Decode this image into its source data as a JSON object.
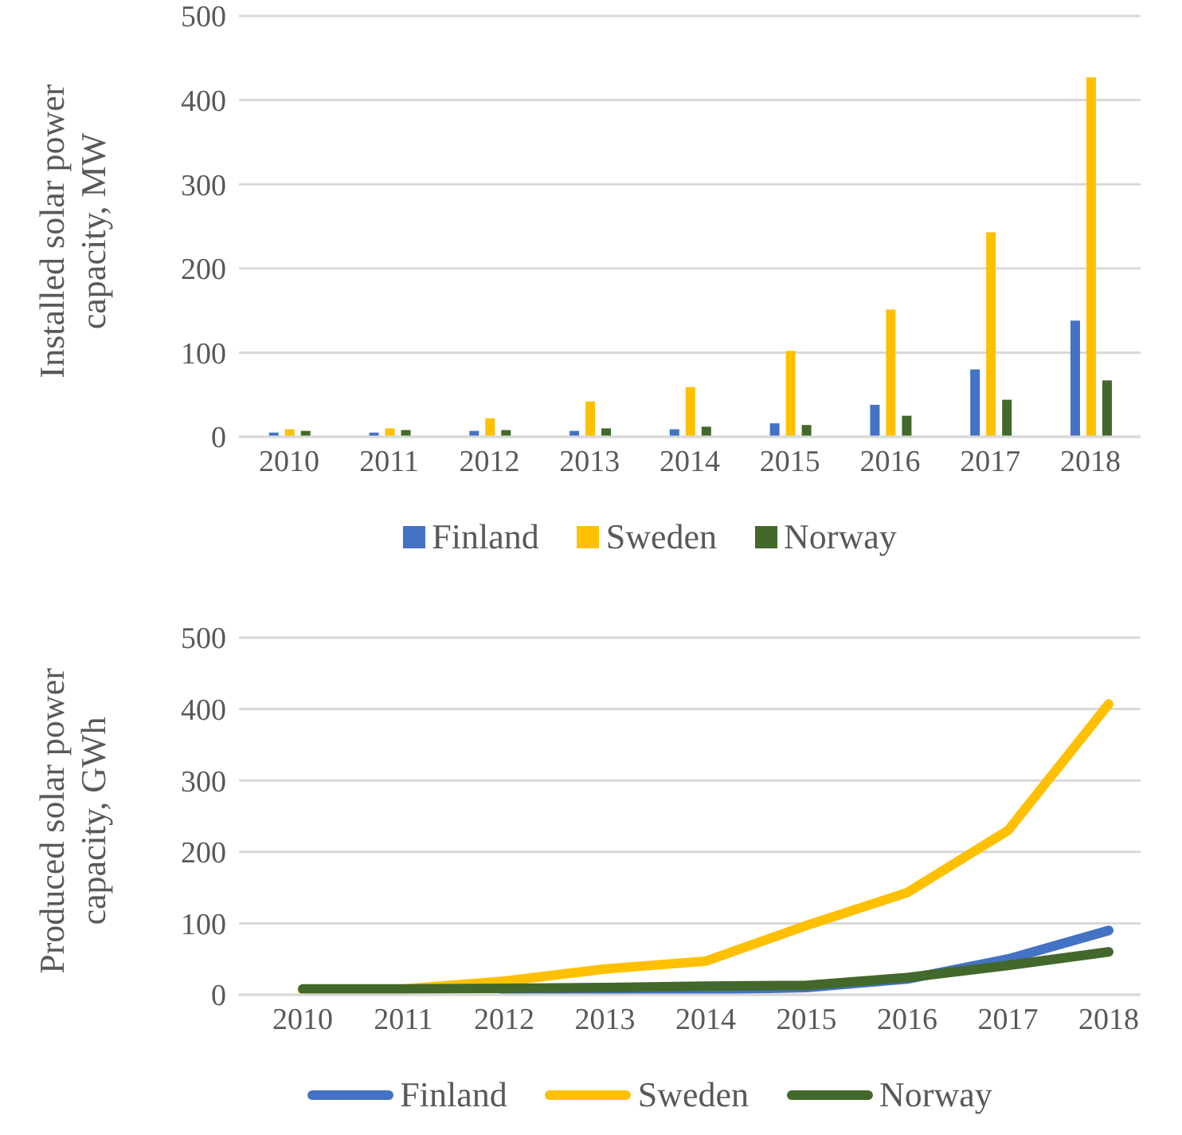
{
  "chart_data": [
    {
      "type": "bar",
      "ylabel": "Installed solar power capacity, MW",
      "categories": [
        "2010",
        "2011",
        "2012",
        "2013",
        "2014",
        "2015",
        "2016",
        "2017",
        "2018"
      ],
      "series": [
        {
          "name": "Finland",
          "color": "#4472c4",
          "values": [
            5,
            5,
            7,
            7,
            9,
            16,
            38,
            80,
            138
          ]
        },
        {
          "name": "Sweden",
          "color": "#ffc000",
          "values": [
            9,
            10,
            22,
            42,
            59,
            102,
            151,
            243,
            427
          ]
        },
        {
          "name": "Norway",
          "color": "#43682b",
          "values": [
            7,
            8,
            8,
            10,
            12,
            14,
            25,
            44,
            67
          ]
        }
      ],
      "ylim": [
        0,
        500
      ],
      "yticks": [
        0,
        100,
        200,
        300,
        400,
        500
      ],
      "grid": "y",
      "legend": "bottom"
    },
    {
      "type": "line",
      "ylabel": "Produced solar power capacity, GWh",
      "categories": [
        "2010",
        "2011",
        "2012",
        "2013",
        "2014",
        "2015",
        "2016",
        "2017",
        "2018"
      ],
      "series": [
        {
          "name": "Finland",
          "color": "#4472c4",
          "values": [
            null,
            null,
            5,
            5,
            7,
            10,
            22,
            50,
            90
          ]
        },
        {
          "name": "Sweden",
          "color": "#ffc000",
          "values": [
            6,
            8,
            19,
            36,
            47,
            97,
            143,
            230,
            407
          ]
        },
        {
          "name": "Norway",
          "color": "#43682b",
          "values": [
            8,
            8,
            9,
            10,
            12,
            13,
            24,
            41,
            60
          ]
        }
      ],
      "ylim": [
        0,
        500
      ],
      "yticks": [
        0,
        100,
        200,
        300,
        400,
        500
      ],
      "grid": "y",
      "legend": "bottom"
    }
  ]
}
